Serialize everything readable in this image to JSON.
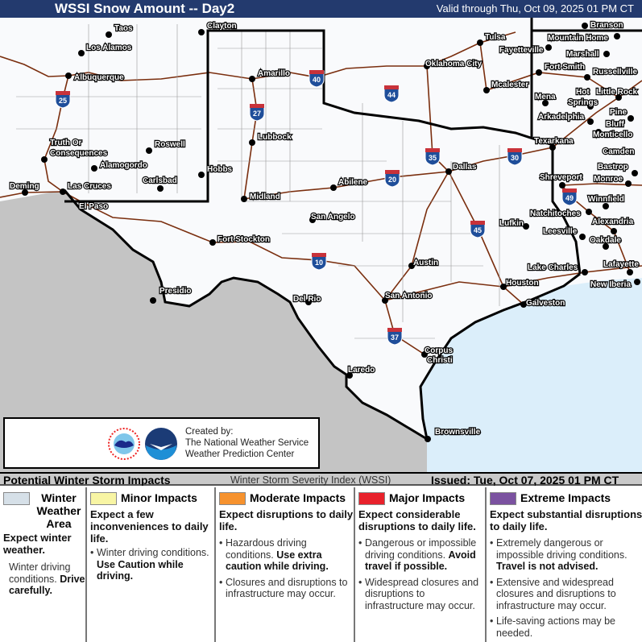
{
  "header": {
    "title": "WSSI Snow Amount -- Day2",
    "valid": "Valid through Thu, Oct 09, 2025 01 PM CT",
    "bg": "#233a6e"
  },
  "map": {
    "colors": {
      "land": "#f9fafc",
      "mexico": "#c4c4c4",
      "water": "#dbeefa",
      "roads": "#7a2e0e"
    },
    "cities": [
      "Taos",
      "Los Alamos",
      "Albuquerque",
      "Truth Or",
      "Consequences",
      "Roswell",
      "Alamogordo",
      "Carlsbad",
      "Deming",
      "Las Cruces",
      "El Paso",
      "Clayton",
      "Hobbs",
      "Amarillo",
      "Lubbock",
      "Midland",
      "Abilene",
      "Fort Stockton",
      "San Angelo",
      "Presidio",
      "Del Rio",
      "Laredo",
      "San Antonio",
      "Austin",
      "Houston",
      "Galveston",
      "Corpus",
      "Christi",
      "Brownsville",
      "Dallas",
      "Lufkin",
      "Tulsa",
      "Fayetteville",
      "Oklahoma City",
      "Mcalester",
      "Fort Smith",
      "Branson",
      "Mountain Home",
      "Marshall",
      "Russellville",
      "Mena",
      "Hot",
      "Springs",
      "Little Rock",
      "Arkadelphia",
      "Pine",
      "Bluff",
      "Monticello",
      "Camden",
      "Texarkana",
      "Bastrop",
      "Monroe",
      "Shreveport",
      "Winnfield",
      "Natchitoches",
      "Alexandria",
      "Leesville",
      "Oakdale",
      "Lake Charles",
      "Lafayette",
      "New Iberia"
    ],
    "interstates": [
      "25",
      "40",
      "27",
      "44",
      "35",
      "30",
      "20",
      "49",
      "45",
      "10",
      "37"
    ]
  },
  "credit": {
    "line1": "Created by:",
    "line2": "The National Weather Service",
    "line3": "Weather Prediction Center",
    "logos": [
      "NWS logo",
      "NOAA logo"
    ]
  },
  "legend_bar": {
    "left": "Potential Winter Storm Impacts",
    "center": "Winter Storm Severity Index (WSSI)",
    "right": "Issued: Tue, Oct 07, 2025 01 PM CT"
  },
  "legend": [
    {
      "title": "Winter Weather Area",
      "color": "#d6e0e8",
      "summary": "Expect winter weather.",
      "bullets": [
        {
          "text": "Winter driving conditions. ",
          "bold": "Drive carefully."
        }
      ]
    },
    {
      "title": "Minor Impacts",
      "color": "#f8f5a4",
      "summary": "Expect a few inconveniences to daily life.",
      "bullets": [
        {
          "text": "Winter driving conditions. ",
          "bold": "Use Caution while driving."
        }
      ]
    },
    {
      "title": "Moderate Impacts",
      "color": "#f6922e",
      "summary": "Expect disruptions to daily life.",
      "bullets": [
        {
          "text": "Hazardous driving conditions. ",
          "bold": "Use extra caution while driving."
        },
        {
          "text": "Closures and disruptions to infrastructure may occur.",
          "bold": ""
        }
      ]
    },
    {
      "title": "Major Impacts",
      "color": "#e8212b",
      "summary": "Expect considerable disruptions to daily life.",
      "bullets": [
        {
          "text": "Dangerous or impossible driving conditions. ",
          "bold": "Avoid travel if possible."
        },
        {
          "text": "Widespread closures and disruptions to infrastructure may occur.",
          "bold": ""
        }
      ]
    },
    {
      "title": "Extreme Impacts",
      "color": "#7b52a0",
      "summary": "Expect substantial disruptions to daily life.",
      "bullets": [
        {
          "text": "Extremely dangerous or impossible driving conditions. ",
          "bold": "Travel is not advised."
        },
        {
          "text": "Extensive and widespread closures and disruptions to infrastructure may occur.",
          "bold": ""
        },
        {
          "text": "Life-saving actions may be needed.",
          "bold": ""
        }
      ]
    }
  ]
}
